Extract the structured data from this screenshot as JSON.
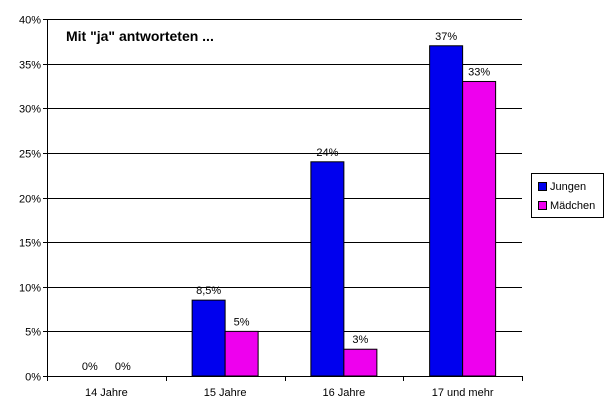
{
  "chart_data": {
    "type": "bar",
    "title": "Mit \"ja\" antworteten ...",
    "categories": [
      "14 Jahre",
      "15 Jahre",
      "16 Jahre",
      "17 und mehr"
    ],
    "series": [
      {
        "name": "Jungen",
        "values": [
          0,
          8.5,
          24,
          37
        ],
        "labels": [
          "0%",
          "8,5%",
          "24%",
          "37%"
        ],
        "color": "#0000ee"
      },
      {
        "name": "Mädchen",
        "values": [
          0,
          5,
          3,
          33
        ],
        "labels": [
          "0%",
          "5%",
          "3%",
          "33%"
        ],
        "color": "#ee00ee"
      }
    ],
    "ylim": [
      0,
      40
    ],
    "yticks": [
      0,
      5,
      10,
      15,
      20,
      25,
      30,
      35,
      40
    ],
    "ytick_labels": [
      "0%",
      "5%",
      "10%",
      "15%",
      "20%",
      "25%",
      "30%",
      "35%",
      "40%"
    ],
    "grid": true,
    "legend": "right"
  }
}
